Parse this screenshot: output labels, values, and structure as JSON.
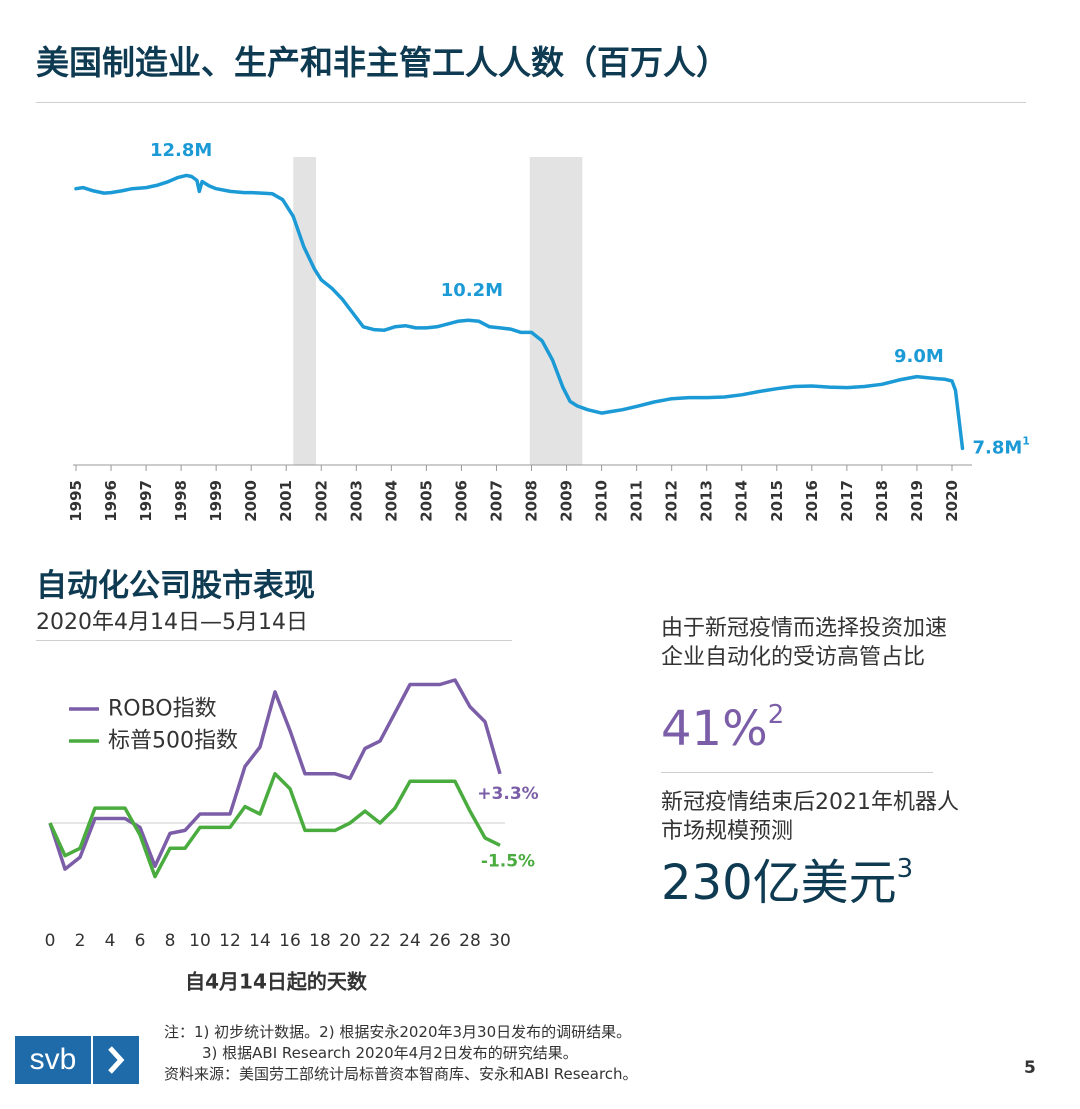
{
  "title": "美国制造业、生产和非主管工人人数（百万人）",
  "colors": {
    "navy": "#0e3a52",
    "employment_line": "#1b9ad6",
    "recession_band": "#e3e3e3",
    "robo": "#7b5ea7",
    "sp500": "#4aac3f",
    "gray_text": "#333333",
    "logo_blue": "#1f6aa9"
  },
  "chart_data": [
    {
      "type": "line",
      "title": "美国制造业、生产和非主管工人人数（百万人）",
      "ylabel": "百万人",
      "xlim": [
        1995,
        2020.4
      ],
      "ylim": [
        7.5,
        13.2
      ],
      "x_ticks": [
        "1995",
        "1996",
        "1997",
        "1998",
        "1999",
        "2000",
        "2001",
        "2002",
        "2003",
        "2004",
        "2005",
        "2006",
        "2007",
        "2008",
        "2009",
        "2010",
        "2011",
        "2012",
        "2013",
        "2014",
        "2015",
        "2016",
        "2017",
        "2018",
        "2019",
        "2020"
      ],
      "recession_bands": [
        [
          2001.2,
          2001.85
        ],
        [
          2007.95,
          2009.45
        ]
      ],
      "series": [
        {
          "name": "制造业、生产和非主管工人人数",
          "x": [
            1995.0,
            1995.2,
            1995.5,
            1995.8,
            1996.0,
            1996.3,
            1996.6,
            1997.0,
            1997.3,
            1997.6,
            1997.9,
            1998.15,
            1998.3,
            1998.45,
            1998.52,
            1998.6,
            1998.8,
            1999.0,
            1999.4,
            1999.8,
            2000.0,
            2000.3,
            2000.6,
            2000.9,
            2001.2,
            2001.5,
            2001.8,
            2002.0,
            2002.3,
            2002.6,
            2002.9,
            2003.2,
            2003.5,
            2003.8,
            2004.1,
            2004.4,
            2004.7,
            2005.0,
            2005.3,
            2005.6,
            2005.9,
            2006.2,
            2006.5,
            2006.8,
            2007.1,
            2007.4,
            2007.7,
            2008.0,
            2008.3,
            2008.6,
            2008.9,
            2009.1,
            2009.3,
            2009.6,
            2010.0,
            2010.3,
            2010.6,
            2011.0,
            2011.5,
            2012.0,
            2012.5,
            2013.0,
            2013.5,
            2014.0,
            2014.5,
            2015.0,
            2015.5,
            2016.0,
            2016.5,
            2017.0,
            2017.5,
            2018.0,
            2018.5,
            2019.0,
            2019.3,
            2019.6,
            2019.8,
            2020.0,
            2020.1,
            2020.3
          ],
          "values": [
            12.5,
            12.52,
            12.46,
            12.42,
            12.43,
            12.46,
            12.5,
            12.52,
            12.56,
            12.62,
            12.7,
            12.74,
            12.72,
            12.65,
            12.45,
            12.63,
            12.55,
            12.5,
            12.45,
            12.43,
            12.43,
            12.42,
            12.41,
            12.3,
            12.0,
            11.45,
            11.05,
            10.85,
            10.7,
            10.5,
            10.25,
            10.0,
            9.95,
            9.94,
            10.0,
            10.02,
            9.98,
            9.98,
            10.0,
            10.05,
            10.1,
            10.12,
            10.1,
            10.0,
            9.98,
            9.96,
            9.9,
            9.9,
            9.75,
            9.4,
            8.9,
            8.65,
            8.57,
            8.5,
            8.44,
            8.47,
            8.5,
            8.56,
            8.64,
            8.7,
            8.72,
            8.72,
            8.73,
            8.77,
            8.83,
            8.88,
            8.92,
            8.93,
            8.91,
            8.9,
            8.92,
            8.96,
            9.04,
            9.1,
            9.08,
            9.06,
            9.05,
            9.02,
            8.85,
            7.8
          ]
        }
      ],
      "annotations": [
        {
          "label": "12.8M",
          "x": 1998.0,
          "value": 12.8
        },
        {
          "label": "10.2M",
          "x": 2006.3,
          "value": 10.2
        },
        {
          "label": "9.0M",
          "x": 2019.0,
          "value": 9.0
        },
        {
          "label": "7.8M",
          "superscript": "1",
          "x": 2020.3,
          "value": 7.8
        }
      ]
    },
    {
      "type": "line",
      "title": "自动化公司股市表现",
      "subtitle": "2020年4月14日—5月14日",
      "xlabel": "自4月14日起的天数",
      "ylabel": "",
      "xlim": [
        0,
        30
      ],
      "ylim": [
        -4.5,
        9.6
      ],
      "x_ticks": [
        "0",
        "2",
        "4",
        "6",
        "8",
        "10",
        "12",
        "14",
        "16",
        "18",
        "20",
        "22",
        "24",
        "26",
        "28",
        "30"
      ],
      "series": [
        {
          "name": "ROBO指数",
          "x": [
            0,
            1,
            2,
            3,
            4,
            5,
            6,
            7,
            8,
            9,
            10,
            11,
            12,
            13,
            14,
            15,
            16,
            17,
            18,
            19,
            20,
            21,
            22,
            23,
            24,
            25,
            26,
            27,
            28,
            29,
            30
          ],
          "values": [
            0.0,
            -3.1,
            -2.3,
            0.3,
            0.3,
            0.3,
            -0.3,
            -2.9,
            -0.7,
            -0.5,
            0.6,
            0.6,
            0.6,
            3.8,
            5.1,
            8.8,
            6.2,
            3.3,
            3.3,
            3.3,
            3.0,
            5.0,
            5.5,
            7.4,
            9.3,
            9.3,
            9.3,
            9.6,
            7.8,
            6.8,
            3.3
          ]
        },
        {
          "name": "标普500指数",
          "x": [
            0,
            1,
            2,
            3,
            4,
            5,
            6,
            7,
            8,
            9,
            10,
            11,
            12,
            13,
            14,
            15,
            16,
            17,
            18,
            19,
            20,
            21,
            22,
            23,
            24,
            25,
            26,
            27,
            28,
            29,
            30
          ],
          "values": [
            0.0,
            -2.2,
            -1.7,
            1.0,
            1.0,
            1.0,
            -0.8,
            -3.6,
            -1.7,
            -1.7,
            -0.3,
            -0.3,
            -0.3,
            1.1,
            0.6,
            3.3,
            2.3,
            -0.5,
            -0.5,
            -0.5,
            0.0,
            0.8,
            0.0,
            1.0,
            2.8,
            2.8,
            2.8,
            2.8,
            0.8,
            -1.0,
            -1.5
          ]
        }
      ],
      "end_labels": [
        {
          "series": "ROBO指数",
          "label": "+3.3%"
        },
        {
          "series": "标普500指数",
          "label": "-1.5%"
        }
      ]
    }
  ],
  "stats": {
    "stat1_label": "由于新冠疫情而选择投资加速企业自动化的受访高管占比",
    "stat1_value": "41%",
    "stat1_sup": "2",
    "stat2_label": "新冠疫情结束后2021年机器人市场规模预测",
    "stat2_value": "230亿美元",
    "stat2_sup": "3"
  },
  "footer": {
    "note_line1": "注：1) 初步统计数据。2) 根据安永2020年3月30日发布的调研结果。",
    "note_line2": "3) 根据ABI Research 2020年4月2日发布的研究结果。",
    "source": "资料来源：美国劳工部统计局标普资本智商库、安永和ABI Research。",
    "logo_text": "svb",
    "logo_icon": "chevron-right-icon",
    "page_number": "5"
  }
}
